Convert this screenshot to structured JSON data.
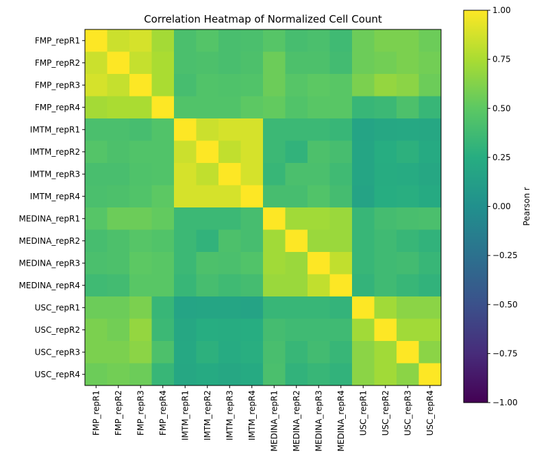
{
  "chart_data": {
    "type": "heatmap",
    "title": "Correlation Heatmap of Normalized Cell Count",
    "xlabel": "",
    "ylabel": "",
    "labels": [
      "FMP_repR1",
      "FMP_repR2",
      "FMP_repR3",
      "FMP_repR4",
      "IMTM_repR1",
      "IMTM_repR2",
      "IMTM_repR3",
      "IMTM_repR4",
      "MEDINA_repR1",
      "MEDINA_repR2",
      "MEDINA_repR3",
      "MEDINA_repR4",
      "USC_repR1",
      "USC_repR2",
      "USC_repR3",
      "USC_repR4"
    ],
    "values": [
      [
        1.0,
        0.85,
        0.88,
        0.73,
        0.42,
        0.46,
        0.41,
        0.42,
        0.47,
        0.4,
        0.42,
        0.37,
        0.55,
        0.6,
        0.6,
        0.55
      ],
      [
        0.85,
        1.0,
        0.83,
        0.75,
        0.42,
        0.43,
        0.41,
        0.43,
        0.55,
        0.43,
        0.43,
        0.38,
        0.55,
        0.57,
        0.6,
        0.57
      ],
      [
        0.88,
        0.83,
        1.0,
        0.75,
        0.4,
        0.45,
        0.44,
        0.45,
        0.55,
        0.47,
        0.5,
        0.48,
        0.6,
        0.68,
        0.65,
        0.55
      ],
      [
        0.73,
        0.75,
        0.75,
        1.0,
        0.45,
        0.45,
        0.45,
        0.5,
        0.52,
        0.45,
        0.48,
        0.48,
        0.33,
        0.35,
        0.43,
        0.33
      ],
      [
        0.42,
        0.42,
        0.4,
        0.45,
        1.0,
        0.85,
        0.88,
        0.88,
        0.35,
        0.35,
        0.35,
        0.33,
        0.17,
        0.2,
        0.21,
        0.2
      ],
      [
        0.46,
        0.43,
        0.45,
        0.45,
        0.85,
        1.0,
        0.82,
        0.88,
        0.35,
        0.3,
        0.43,
        0.4,
        0.18,
        0.25,
        0.28,
        0.22
      ],
      [
        0.41,
        0.41,
        0.44,
        0.45,
        0.88,
        0.82,
        1.0,
        0.88,
        0.33,
        0.42,
        0.42,
        0.37,
        0.18,
        0.24,
        0.23,
        0.2
      ],
      [
        0.42,
        0.43,
        0.45,
        0.5,
        0.88,
        0.88,
        0.88,
        1.0,
        0.4,
        0.4,
        0.45,
        0.39,
        0.16,
        0.25,
        0.26,
        0.22
      ],
      [
        0.47,
        0.55,
        0.55,
        0.52,
        0.35,
        0.35,
        0.35,
        0.4,
        1.0,
        0.72,
        0.72,
        0.7,
        0.33,
        0.39,
        0.41,
        0.42
      ],
      [
        0.4,
        0.43,
        0.47,
        0.45,
        0.35,
        0.3,
        0.43,
        0.4,
        0.72,
        1.0,
        0.7,
        0.7,
        0.33,
        0.37,
        0.33,
        0.3
      ],
      [
        0.42,
        0.43,
        0.5,
        0.48,
        0.35,
        0.43,
        0.42,
        0.45,
        0.72,
        0.7,
        1.0,
        0.82,
        0.33,
        0.37,
        0.38,
        0.33
      ],
      [
        0.37,
        0.38,
        0.48,
        0.48,
        0.33,
        0.4,
        0.37,
        0.39,
        0.7,
        0.7,
        0.82,
        1.0,
        0.31,
        0.37,
        0.33,
        0.3
      ],
      [
        0.55,
        0.55,
        0.6,
        0.33,
        0.17,
        0.18,
        0.18,
        0.16,
        0.33,
        0.33,
        0.33,
        0.31,
        1.0,
        0.72,
        0.65,
        0.65
      ],
      [
        0.6,
        0.57,
        0.68,
        0.35,
        0.2,
        0.25,
        0.24,
        0.25,
        0.39,
        0.37,
        0.37,
        0.37,
        0.72,
        1.0,
        0.72,
        0.72
      ],
      [
        0.6,
        0.6,
        0.65,
        0.43,
        0.21,
        0.28,
        0.23,
        0.26,
        0.41,
        0.33,
        0.38,
        0.33,
        0.65,
        0.72,
        1.0,
        0.65
      ],
      [
        0.55,
        0.57,
        0.55,
        0.33,
        0.2,
        0.22,
        0.2,
        0.22,
        0.42,
        0.3,
        0.33,
        0.3,
        0.65,
        0.72,
        0.65,
        1.0
      ]
    ],
    "colormap": "viridis",
    "vmin": -1.0,
    "vmax": 1.0,
    "colorbar": {
      "label": "Pearson r",
      "ticks": [
        1.0,
        0.75,
        0.5,
        0.25,
        0.0,
        -0.25,
        -0.5,
        -0.75,
        -1.0
      ],
      "tick_labels": [
        "1.00",
        "0.75",
        "0.50",
        "0.25",
        "0.00",
        "−0.25",
        "−0.50",
        "−0.75",
        "−1.00"
      ]
    },
    "grid": false
  }
}
